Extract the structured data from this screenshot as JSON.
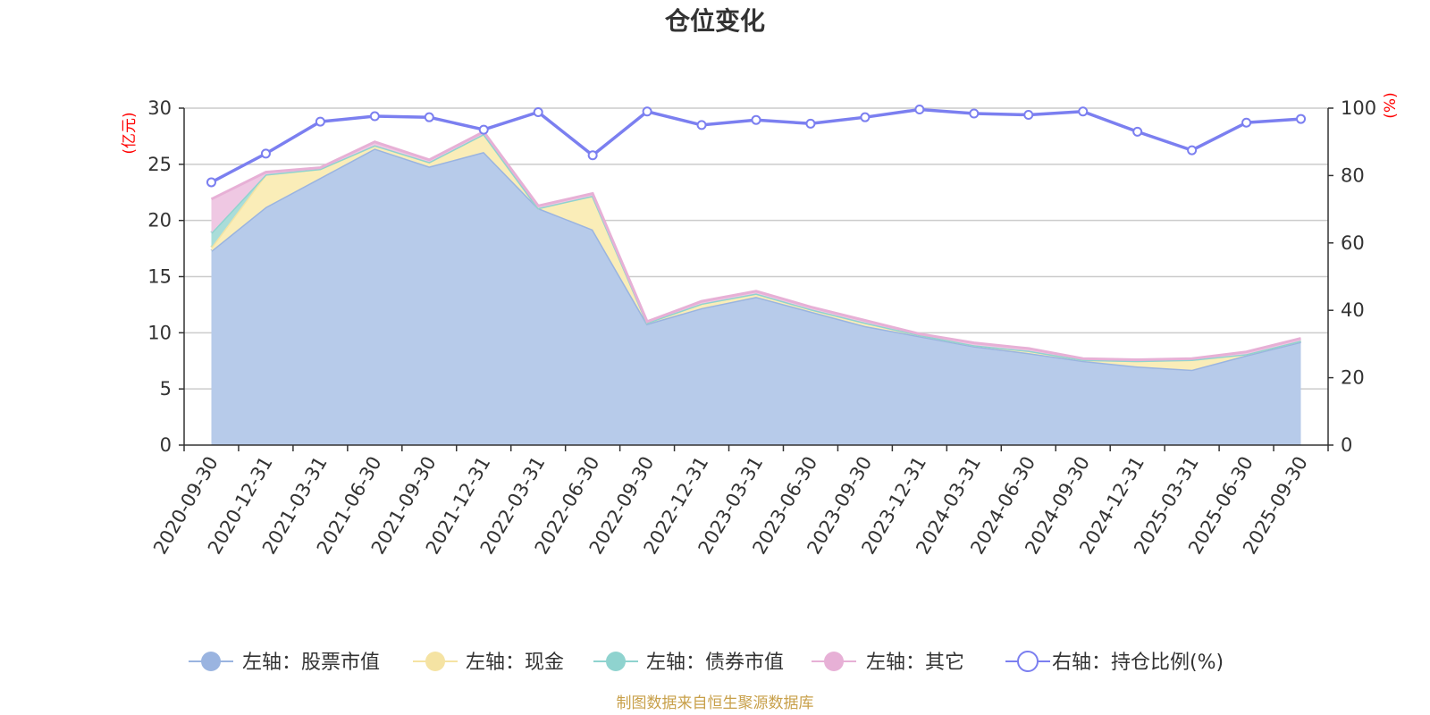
{
  "chart_data": {
    "type": "area",
    "title": "仓位变化",
    "left_axis_unit": "(亿元)",
    "right_axis_unit": "(%)",
    "categories": [
      "2020-09-30",
      "2020-12-31",
      "2021-03-31",
      "2021-06-30",
      "2021-09-30",
      "2021-12-31",
      "2022-03-31",
      "2022-06-30",
      "2022-09-30",
      "2022-12-31",
      "2023-03-31",
      "2023-06-30",
      "2023-09-30",
      "2023-12-31",
      "2024-03-31",
      "2024-06-30",
      "2024-09-30",
      "2024-12-31",
      "2025-03-31",
      "2025-06-30",
      "2025-09-30"
    ],
    "left_ylim": [
      0,
      30
    ],
    "left_yticks": [
      0,
      5,
      10,
      15,
      20,
      25,
      30
    ],
    "right_ylim": [
      0,
      100
    ],
    "right_yticks": [
      0,
      20,
      40,
      60,
      80,
      100
    ],
    "series": [
      {
        "name": "左轴：股票市值",
        "axis": "left",
        "stacked": true,
        "color": "#9ab4e0",
        "fill": "#b7cbea",
        "values": [
          17.3,
          21.2,
          23.8,
          26.4,
          24.8,
          26.1,
          21.1,
          19.2,
          10.8,
          12.2,
          13.2,
          11.9,
          10.6,
          9.7,
          8.8,
          8.2,
          7.5,
          7.0,
          6.7,
          8.0,
          9.2
        ]
      },
      {
        "name": "左轴：现金",
        "axis": "left",
        "stacked": true,
        "color": "#f5e3a3",
        "fill": "#faedb8",
        "values": [
          0.3,
          2.9,
          0.8,
          0.3,
          0.4,
          1.6,
          0.0,
          3.0,
          0.1,
          0.4,
          0.3,
          0.2,
          0.3,
          0.1,
          0.1,
          0.2,
          0.1,
          0.5,
          0.9,
          0.1,
          0.1
        ]
      },
      {
        "name": "左轴：债券市值",
        "axis": "left",
        "stacked": true,
        "color": "#8fd3cf",
        "fill": "#a9ddd9",
        "values": [
          1.3,
          0.0,
          0.0,
          0.0,
          0.0,
          0.0,
          0.0,
          0.0,
          0.0,
          0.0,
          0.0,
          0.0,
          0.0,
          0.0,
          0.0,
          0.0,
          0.0,
          0.0,
          0.0,
          0.0,
          0.0
        ]
      },
      {
        "name": "左轴：其它",
        "axis": "left",
        "stacked": true,
        "color": "#e7b0d6",
        "fill": "#efc8e3",
        "values": [
          3.0,
          0.2,
          0.1,
          0.3,
          0.2,
          0.2,
          0.2,
          0.2,
          0.1,
          0.2,
          0.2,
          0.2,
          0.2,
          0.1,
          0.2,
          0.2,
          0.1,
          0.1,
          0.1,
          0.2,
          0.2
        ]
      },
      {
        "name": "右轴：持仓比例(%)",
        "axis": "right",
        "type": "line",
        "color": "#7b7ff0",
        "values": [
          78.0,
          86.5,
          96.0,
          97.6,
          97.3,
          93.6,
          98.8,
          86.0,
          99.0,
          95.0,
          96.5,
          95.4,
          97.3,
          99.6,
          98.4,
          98.0,
          99.0,
          93.0,
          87.5,
          95.7,
          96.8
        ]
      }
    ],
    "legend_position": "bottom",
    "grid": true
  },
  "source_text": "制图数据来自恒生聚源数据库"
}
